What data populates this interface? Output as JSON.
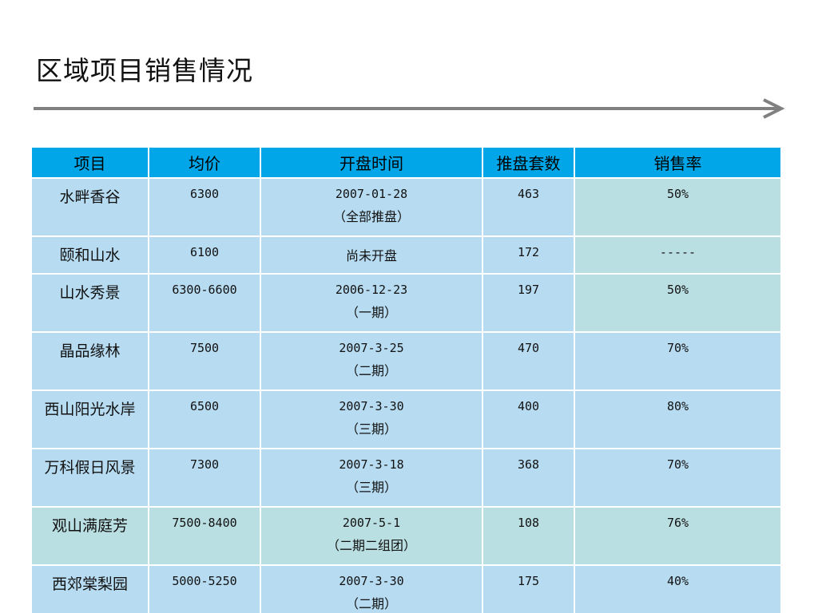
{
  "title": "区域项目销售情况",
  "colors": {
    "header_bg": "#00a6e7",
    "cell_blue": "#b7dcf2",
    "cell_teal": "#badfe2",
    "arrow": "#808080"
  },
  "table": {
    "headers": [
      "项目",
      "均价",
      "开盘时间",
      "推盘套数",
      "销售率"
    ],
    "rows": [
      {
        "name": "水畔香谷",
        "price": "6300",
        "open_date": "2007-01-28",
        "open_note": "（全部推盘）",
        "units": "463",
        "rate": "50%"
      },
      {
        "name": "颐和山水",
        "price": "6100",
        "open_date": "尚未开盘",
        "open_note": "",
        "units": "172",
        "rate": "-----"
      },
      {
        "name": "山水秀景",
        "price": "6300-6600",
        "open_date": "2006-12-23",
        "open_note": "（一期）",
        "units": "197",
        "rate": "50%"
      },
      {
        "name": "晶品缘林",
        "price": "7500",
        "open_date": "2007-3-25",
        "open_note": "（二期）",
        "units": "470",
        "rate": "70%"
      },
      {
        "name": "西山阳光水岸",
        "price": "6500",
        "open_date": "2007-3-30",
        "open_note": "（三期）",
        "units": "400",
        "rate": "80%"
      },
      {
        "name": "万科假日风景",
        "price": "7300",
        "open_date": "2007-3-18",
        "open_note": "（三期）",
        "units": "368",
        "rate": "70%"
      },
      {
        "name": "观山满庭芳",
        "price": "7500-8400",
        "open_date": "2007-5-1",
        "open_note": "（二期二组团）",
        "units": "108",
        "rate": "76%"
      },
      {
        "name": "西郊棠梨园",
        "price": "5000-5250",
        "open_date": "2007-3-30",
        "open_note": "（二期）",
        "units": "175",
        "rate": "40%"
      }
    ]
  }
}
